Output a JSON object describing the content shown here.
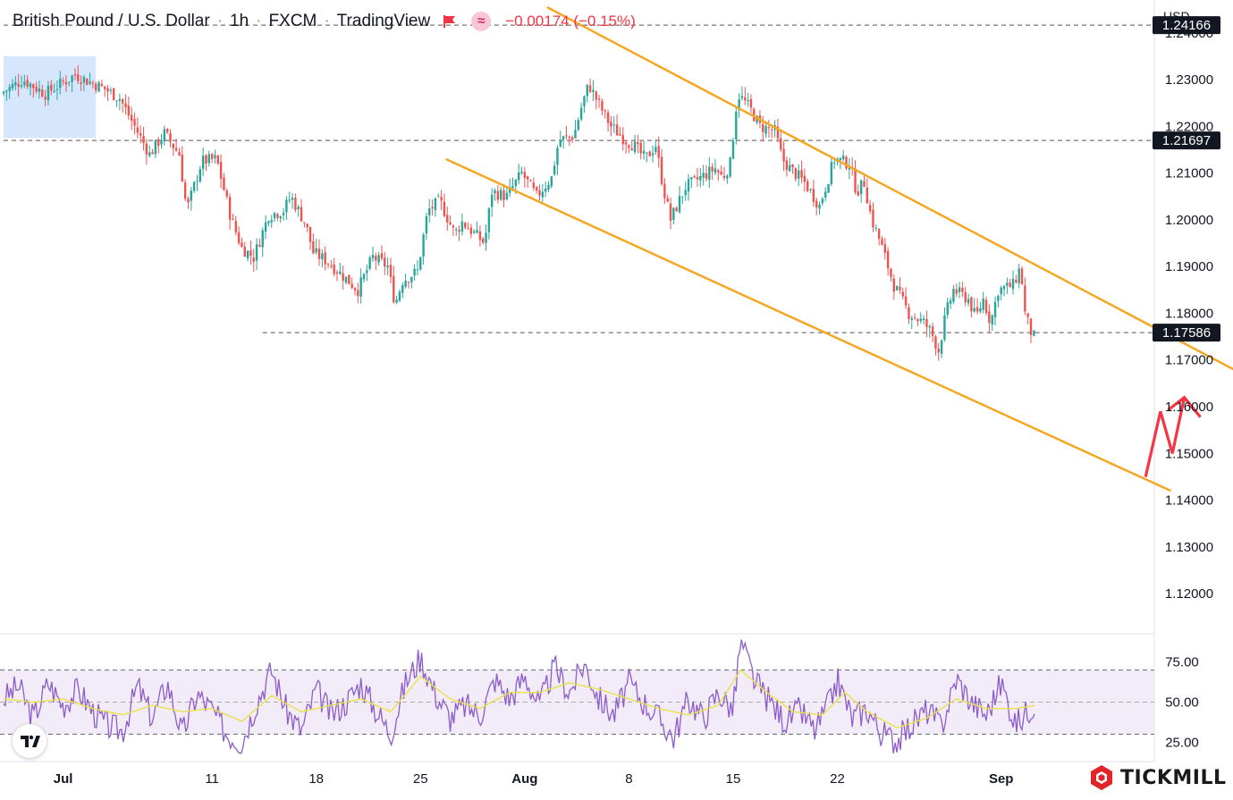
{
  "header": {
    "symbol": "British Pound / U.S. Dollar",
    "interval": "1h",
    "exchange": "FXCM",
    "source": "TradingView",
    "change": "−0.00174 (−0.15%)",
    "wave_glyph": "≈"
  },
  "currency_selector": "USD",
  "brand": "TICKMILL",
  "colors": {
    "up": "#26a69a",
    "down": "#ef5350",
    "channel": "#f5a623",
    "arrow": "#f23645",
    "rsi": "#8e5cc8",
    "rsi_ma": "#e9e24a",
    "highlight": "#cfe2fb",
    "rsi_band": "#ede7f6"
  },
  "chart_data": [
    {
      "type": "candlestick",
      "title": "",
      "y_axis": {
        "min": 1.112,
        "max": 1.2455,
        "tick_labels": [
          "1.24000",
          "1.23000",
          "1.22000",
          "1.21000",
          "1.20000",
          "1.19000",
          "1.18000",
          "1.17000",
          "1.16000",
          "1.15000",
          "1.14000",
          "1.13000",
          "1.12000"
        ],
        "tick_values": [
          1.24,
          1.23,
          1.22,
          1.21,
          1.2,
          1.19,
          1.18,
          1.17,
          1.16,
          1.15,
          1.14,
          1.13,
          1.12
        ]
      },
      "x_axis": {
        "tick_labels": [
          "Jul",
          "11",
          "18",
          "25",
          "Aug",
          "8",
          "15",
          "22",
          "Sep"
        ],
        "tick_days": [
          4,
          14,
          21,
          28,
          35,
          42,
          49,
          56,
          67
        ],
        "start_day": 0,
        "end_day": 69.3,
        "day_zero": "2022-06-27"
      },
      "price_path": [
        [
          0,
          1.227
        ],
        [
          1.5,
          1.23
        ],
        [
          3,
          1.227
        ],
        [
          5,
          1.231
        ],
        [
          7,
          1.228
        ],
        [
          8,
          1.226
        ],
        [
          9,
          1.22
        ],
        [
          10,
          1.214
        ],
        [
          11,
          1.2185
        ],
        [
          12,
          1.214
        ],
        [
          12.5,
          1.202
        ],
        [
          13.5,
          1.2125
        ],
        [
          14.5,
          1.213
        ],
        [
          15.5,
          1.2
        ],
        [
          16.2,
          1.194
        ],
        [
          17,
          1.192
        ],
        [
          18,
          1.201
        ],
        [
          19,
          1.202
        ],
        [
          19.5,
          1.205
        ],
        [
          20.5,
          1.199
        ],
        [
          21,
          1.193
        ],
        [
          22,
          1.191
        ],
        [
          23,
          1.188
        ],
        [
          24,
          1.185
        ],
        [
          25,
          1.192
        ],
        [
          26,
          1.19
        ],
        [
          26.5,
          1.182
        ],
        [
          27,
          1.187
        ],
        [
          28,
          1.189
        ],
        [
          28.7,
          1.202
        ],
        [
          29.5,
          1.204
        ],
        [
          30.5,
          1.197
        ],
        [
          31,
          1.1995
        ],
        [
          32.5,
          1.195
        ],
        [
          33,
          1.206
        ],
        [
          34,
          1.205
        ],
        [
          35,
          1.21
        ],
        [
          36,
          1.205
        ],
        [
          37,
          1.209
        ],
        [
          37.5,
          1.217
        ],
        [
          38.5,
          1.218
        ],
        [
          39,
          1.224
        ],
        [
          39.5,
          1.229
        ],
        [
          40.3,
          1.224
        ],
        [
          41,
          1.22
        ],
        [
          42,
          1.217
        ],
        [
          42.5,
          1.216
        ],
        [
          43.3,
          1.213
        ],
        [
          44,
          1.216
        ],
        [
          44.5,
          1.207
        ],
        [
          45,
          1.2
        ],
        [
          46,
          1.207
        ],
        [
          47,
          1.209
        ],
        [
          48,
          1.211
        ],
        [
          48.5,
          1.209
        ],
        [
          49,
          1.212
        ],
        [
          49.5,
          1.227
        ],
        [
          50.3,
          1.224
        ],
        [
          51,
          1.22
        ],
        [
          52,
          1.219
        ],
        [
          52.5,
          1.213
        ],
        [
          53,
          1.211
        ],
        [
          54,
          1.208
        ],
        [
          55,
          1.203
        ],
        [
          56,
          1.213
        ],
        [
          57,
          1.212
        ],
        [
          57.5,
          1.206
        ],
        [
          58,
          1.208
        ],
        [
          58.5,
          1.2
        ],
        [
          59,
          1.196
        ],
        [
          59.5,
          1.191
        ],
        [
          60,
          1.186
        ],
        [
          61,
          1.18
        ],
        [
          62,
          1.178
        ],
        [
          62.5,
          1.176
        ],
        [
          63,
          1.172
        ],
        [
          63.5,
          1.18
        ],
        [
          64,
          1.185
        ],
        [
          65,
          1.183
        ],
        [
          65.5,
          1.179
        ],
        [
          66,
          1.183
        ],
        [
          66.5,
          1.178
        ],
        [
          67,
          1.185
        ],
        [
          68,
          1.186
        ],
        [
          68.5,
          1.19
        ],
        [
          68.8,
          1.18
        ],
        [
          69.3,
          1.175
        ]
      ],
      "annotations": {
        "horizontal_levels": [
          {
            "value": 1.24166,
            "label": "1.24166",
            "from_day": 0
          },
          {
            "value": 1.21697,
            "label": "1.21697",
            "from_day": 0
          },
          {
            "value": 1.17586,
            "label": "1.17586",
            "from_day": 17.4
          }
        ],
        "channel_upper": [
          [
            36.5,
            1.2455
          ],
          [
            82.6,
            1.168
          ]
        ],
        "channel_lower": [
          [
            29.7,
            1.213
          ],
          [
            78.4,
            1.142
          ]
        ],
        "highlight_box": {
          "from_day": 0,
          "to_day": 6.2,
          "y_top": 1.235,
          "y_bottom": 1.2175
        },
        "projection_arrow": [
          [
            76.7,
            1.145
          ],
          [
            77.7,
            1.159
          ],
          [
            78.5,
            1.15
          ],
          [
            79.3,
            1.162
          ]
        ]
      }
    },
    {
      "type": "line",
      "title": "",
      "indicator": "RSI",
      "y_axis": {
        "min": 14,
        "max": 91,
        "tick_labels": [
          "75.00",
          "50.00",
          "25.00"
        ],
        "tick_values": [
          75,
          50,
          25
        ]
      },
      "bands": {
        "upper": 70,
        "middle": 50,
        "lower": 30
      },
      "rsi_path": [
        [
          0,
          52
        ],
        [
          1,
          60
        ],
        [
          2,
          40
        ],
        [
          3,
          62
        ],
        [
          4,
          48
        ],
        [
          5,
          58
        ],
        [
          6,
          44
        ],
        [
          7,
          35
        ],
        [
          8,
          32
        ],
        [
          9,
          60
        ],
        [
          10,
          40
        ],
        [
          11,
          62
        ],
        [
          12,
          30
        ],
        [
          13,
          55
        ],
        [
          14,
          45
        ],
        [
          15,
          30
        ],
        [
          16,
          25
        ],
        [
          17,
          50
        ],
        [
          18,
          70
        ],
        [
          19,
          45
        ],
        [
          20,
          32
        ],
        [
          21,
          58
        ],
        [
          22,
          42
        ],
        [
          23,
          50
        ],
        [
          24,
          62
        ],
        [
          25,
          45
        ],
        [
          26,
          30
        ],
        [
          27,
          62
        ],
        [
          28,
          78
        ],
        [
          29,
          55
        ],
        [
          30,
          40
        ],
        [
          31,
          48
        ],
        [
          32,
          42
        ],
        [
          33,
          64
        ],
        [
          34,
          52
        ],
        [
          35,
          66
        ],
        [
          36,
          48
        ],
        [
          37,
          72
        ],
        [
          38,
          56
        ],
        [
          39,
          74
        ],
        [
          40,
          52
        ],
        [
          41,
          42
        ],
        [
          42,
          62
        ],
        [
          43,
          50
        ],
        [
          44,
          40
        ],
        [
          45,
          28
        ],
        [
          46,
          52
        ],
        [
          47,
          40
        ],
        [
          48,
          56
        ],
        [
          49,
          45
        ],
        [
          49.5,
          88
        ],
        [
          50.5,
          62
        ],
        [
          51.5,
          50
        ],
        [
          52.5,
          38
        ],
        [
          53.5,
          45
        ],
        [
          54.5,
          32
        ],
        [
          55.5,
          50
        ],
        [
          56,
          64
        ],
        [
          57,
          40
        ],
        [
          58,
          46
        ],
        [
          59,
          30
        ],
        [
          60,
          26
        ],
        [
          61,
          36
        ],
        [
          62,
          45
        ],
        [
          63,
          35
        ],
        [
          64,
          65
        ],
        [
          65,
          50
        ],
        [
          66,
          42
        ],
        [
          67,
          62
        ],
        [
          68,
          36
        ],
        [
          69.3,
          50
        ]
      ],
      "rsi_ma_path": [
        [
          0,
          52
        ],
        [
          2,
          50
        ],
        [
          4,
          52
        ],
        [
          6,
          46
        ],
        [
          8,
          42
        ],
        [
          10,
          48
        ],
        [
          12,
          44
        ],
        [
          14,
          46
        ],
        [
          16,
          38
        ],
        [
          18,
          54
        ],
        [
          20,
          44
        ],
        [
          22,
          48
        ],
        [
          24,
          52
        ],
        [
          26,
          44
        ],
        [
          28,
          66
        ],
        [
          30,
          52
        ],
        [
          32,
          46
        ],
        [
          34,
          56
        ],
        [
          36,
          56
        ],
        [
          38,
          62
        ],
        [
          40,
          58
        ],
        [
          42,
          52
        ],
        [
          44,
          46
        ],
        [
          46,
          42
        ],
        [
          48,
          48
        ],
        [
          49.5,
          70
        ],
        [
          51,
          58
        ],
        [
          53,
          44
        ],
        [
          55,
          42
        ],
        [
          56.5,
          56
        ],
        [
          58,
          44
        ],
        [
          60,
          34
        ],
        [
          62,
          40
        ],
        [
          64,
          52
        ],
        [
          66,
          46
        ],
        [
          68,
          46
        ],
        [
          69.3,
          48
        ]
      ]
    }
  ]
}
